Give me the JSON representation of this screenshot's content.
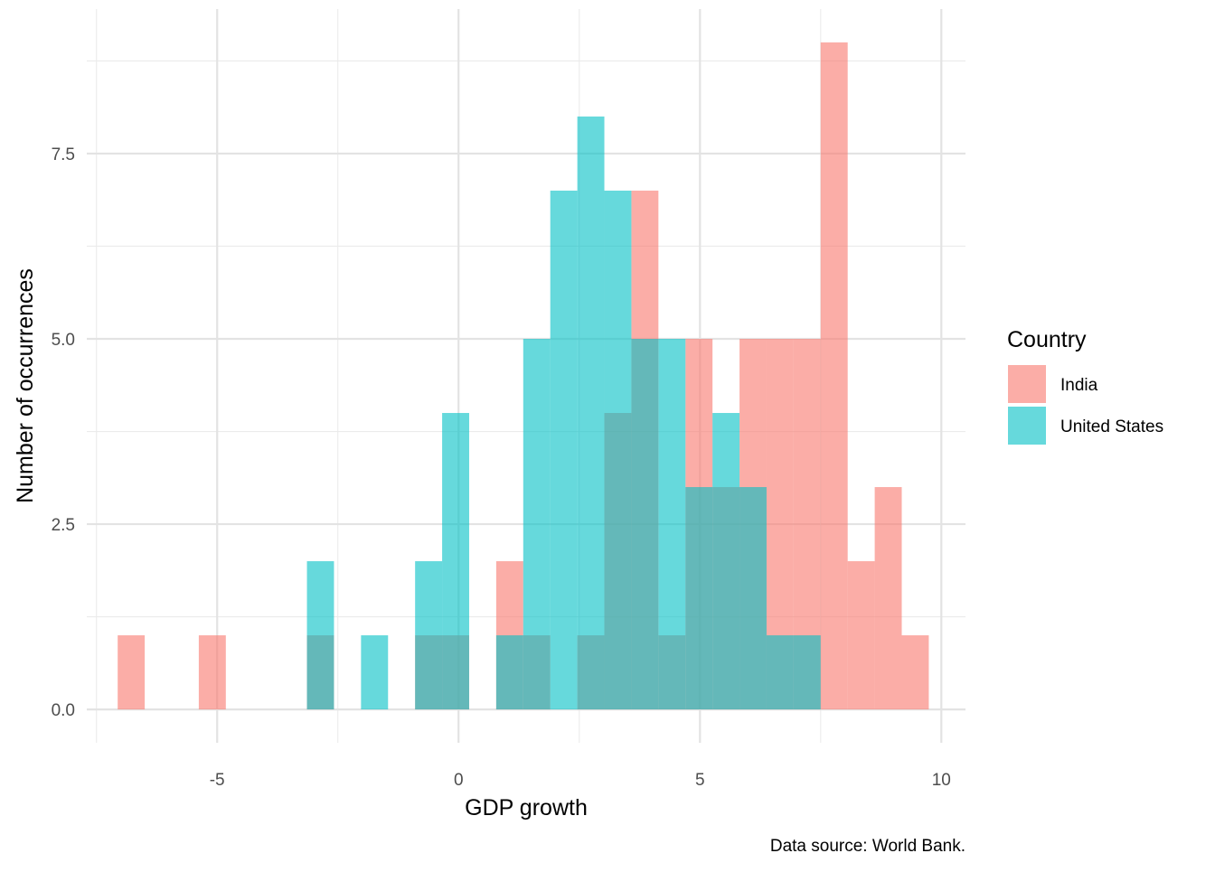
{
  "chart_data": {
    "type": "histogram",
    "xlabel": "GDP growth",
    "ylabel": "Number of occurrences",
    "caption": "Data source: World Bank.",
    "xlim": [
      -7.7,
      10.5
    ],
    "ylim": [
      -0.45,
      9.45
    ],
    "x_ticks": [
      -5,
      0,
      5,
      10
    ],
    "x_tick_labels": [
      "-5",
      "0",
      "5",
      "10"
    ],
    "y_ticks": [
      0,
      2.5,
      5,
      7.5
    ],
    "y_tick_labels": [
      "0.0",
      "2.5",
      "5.0",
      "7.5"
    ],
    "x_minor_ticks": [
      -7.5,
      -2.5,
      2.5,
      7.5
    ],
    "y_minor_ticks": [
      1.25,
      3.75,
      6.25,
      8.75
    ],
    "grid": true,
    "legend": {
      "title": "Country",
      "placement": "right"
    },
    "bins_x0": [
      -7.06,
      -6.5,
      -5.94,
      -5.38,
      -4.82,
      -4.26,
      -3.7,
      -3.14,
      -2.58,
      -2.02,
      -1.46,
      -0.9,
      -0.34,
      0.22,
      0.78,
      1.34,
      1.9,
      2.46,
      3.02,
      3.58,
      4.14,
      4.7,
      5.26,
      5.82,
      6.38,
      6.94,
      7.5,
      8.06,
      8.62,
      9.18
    ],
    "bins_x1": [
      -6.5,
      -5.94,
      -5.38,
      -4.82,
      -4.26,
      -3.7,
      -3.14,
      -2.58,
      -2.02,
      -1.46,
      -0.9,
      -0.34,
      0.22,
      0.78,
      1.34,
      1.9,
      2.46,
      3.02,
      3.58,
      4.14,
      4.7,
      5.26,
      5.82,
      6.38,
      6.94,
      7.5,
      8.06,
      8.62,
      9.18,
      9.74
    ],
    "series": [
      {
        "name": "India",
        "color": "#F8766D",
        "values": [
          1,
          0,
          0,
          1,
          0,
          0,
          0,
          1,
          0,
          0,
          0,
          1,
          1,
          0,
          2,
          1,
          0,
          1,
          4,
          7,
          1,
          5,
          3,
          5,
          5,
          5,
          9,
          2,
          3,
          1
        ]
      },
      {
        "name": "United States",
        "color": "#00BFC4",
        "values": [
          0,
          0,
          0,
          0,
          0,
          0,
          0,
          2,
          0,
          1,
          0,
          2,
          4,
          0,
          1,
          5,
          7,
          8,
          7,
          5,
          5,
          3,
          4,
          3,
          1,
          1,
          0,
          0,
          0,
          0
        ]
      }
    ],
    "overlap_color": "#87AEAE"
  }
}
